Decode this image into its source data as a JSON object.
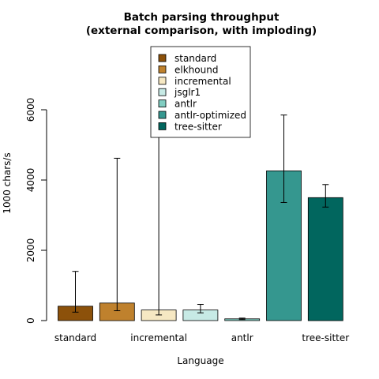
{
  "chart_data": {
    "type": "bar",
    "title_line1": "Batch parsing throughput",
    "title_line2": "(external comparison, with imploding)",
    "xlabel": "Language",
    "ylabel": "1000 chars/s",
    "ylim": [
      0,
      6000
    ],
    "yticks": [
      0,
      2000,
      4000,
      6000
    ],
    "grid": false,
    "legend_placement": "top-center",
    "categories": [
      "standard",
      "elkhound",
      "incremental",
      "jsglr1",
      "antlr",
      "antlr-optimized",
      "tree-sitter"
    ],
    "x_tick_labels": [
      "standard",
      "",
      "incremental",
      "",
      "antlr",
      "",
      "tree-sitter"
    ],
    "values": [
      410,
      500,
      300,
      300,
      50,
      4260,
      3500
    ],
    "error_low": [
      240,
      280,
      160,
      220,
      30,
      3360,
      3230
    ],
    "error_high": [
      1400,
      4620,
      7800,
      460,
      70,
      5850,
      3870
    ],
    "colors": [
      "#8c510a",
      "#bf812d",
      "#f6e8c3",
      "#c7eae5",
      "#80cdc1",
      "#35978f",
      "#01665e"
    ]
  }
}
